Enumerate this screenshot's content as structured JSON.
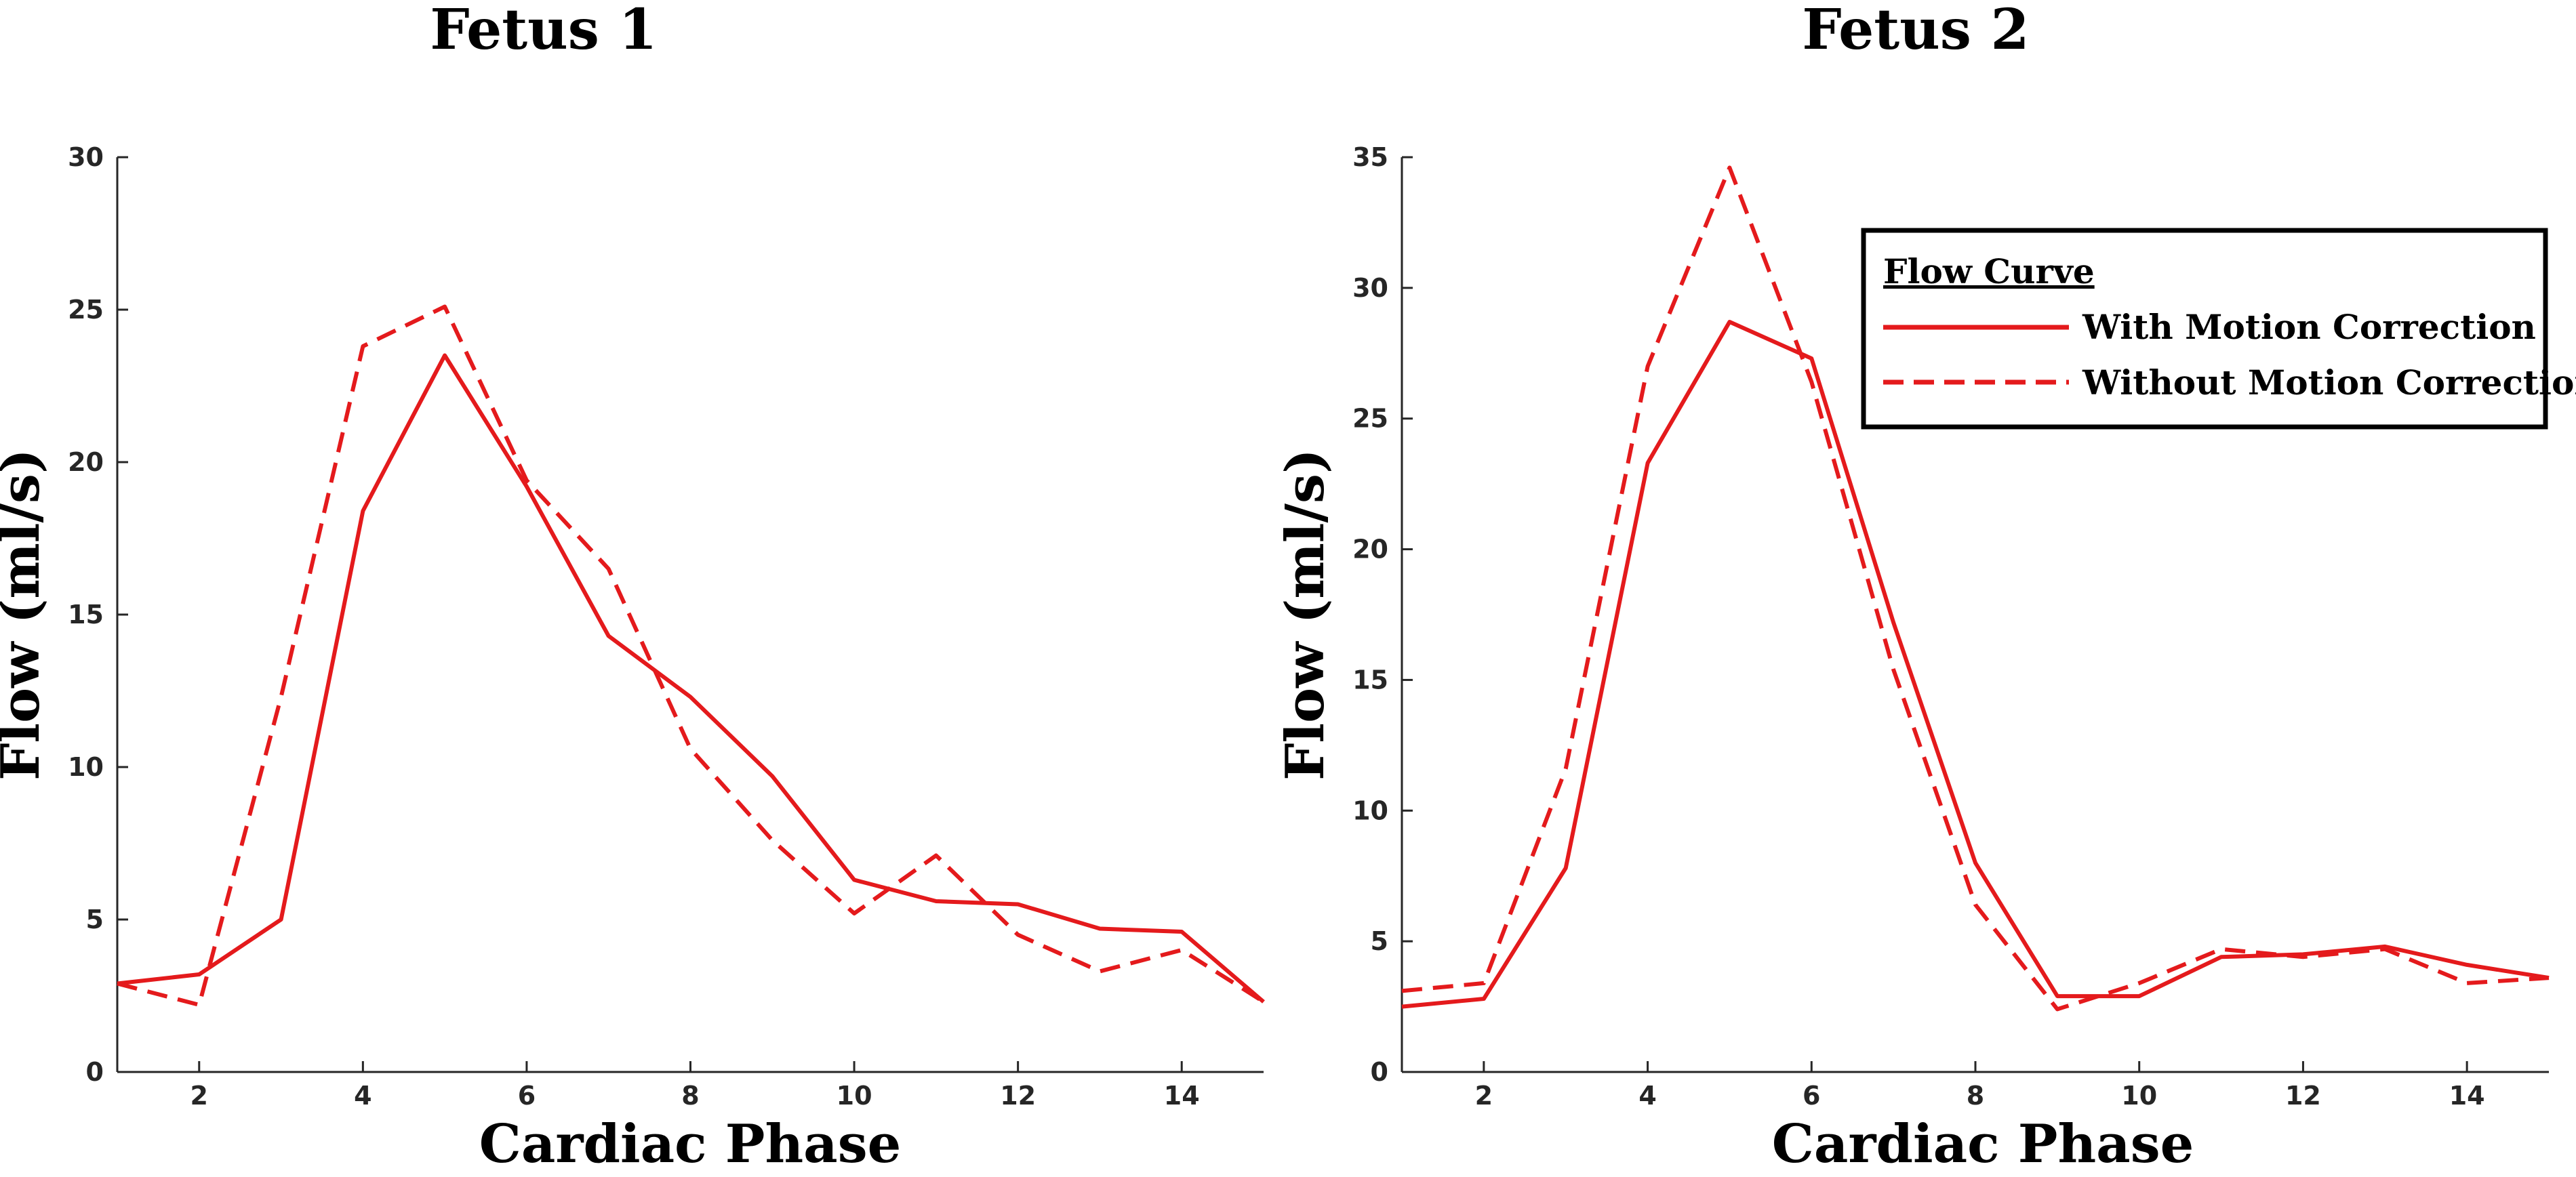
{
  "chart_data": [
    {
      "type": "line",
      "title": "Fetus 1",
      "xlabel": "Cardiac Phase",
      "ylabel": "Flow (ml/s)",
      "xlim": [
        1,
        15
      ],
      "ylim": [
        0,
        30
      ],
      "xticks": [
        2,
        4,
        6,
        8,
        10,
        12,
        14
      ],
      "yticks": [
        0,
        5,
        10,
        15,
        20,
        25,
        30
      ],
      "grid": false,
      "x": [
        1,
        2,
        3,
        4,
        5,
        6,
        7,
        8,
        9,
        10,
        11,
        12,
        13,
        14,
        15
      ],
      "series": [
        {
          "name": "With Motion Correction",
          "style": "solid",
          "color": "#e41a1c",
          "values": [
            2.9,
            3.2,
            5.0,
            18.4,
            23.5,
            19.2,
            14.3,
            12.3,
            9.7,
            6.3,
            5.6,
            5.5,
            4.7,
            4.6,
            2.3
          ]
        },
        {
          "name": "Without Motion Correction",
          "style": "dashed",
          "color": "#e41a1c",
          "values": [
            2.9,
            2.2,
            12.3,
            23.8,
            25.1,
            19.4,
            16.5,
            10.6,
            7.6,
            5.2,
            7.1,
            4.5,
            3.3,
            4.0,
            2.3
          ]
        }
      ]
    },
    {
      "type": "line",
      "title": "Fetus 2",
      "xlabel": "Cardiac Phase",
      "ylabel": "Flow (ml/s)",
      "xlim": [
        1,
        15
      ],
      "ylim": [
        0,
        35
      ],
      "xticks": [
        2,
        4,
        6,
        8,
        10,
        12,
        14
      ],
      "yticks": [
        0,
        5,
        10,
        15,
        20,
        25,
        30,
        35
      ],
      "grid": false,
      "legend": {
        "title": "Flow Curve",
        "placement": "top-right"
      },
      "x": [
        1,
        2,
        3,
        4,
        5,
        6,
        7,
        8,
        9,
        10,
        11,
        12,
        13,
        14,
        15
      ],
      "series": [
        {
          "name": "With Motion Correction",
          "style": "solid",
          "color": "#e41a1c",
          "values": [
            2.5,
            2.8,
            7.8,
            23.3,
            28.7,
            27.3,
            17.2,
            8.0,
            2.9,
            2.9,
            4.4,
            4.5,
            4.8,
            4.1,
            3.6
          ]
        },
        {
          "name": "Without Motion Correction",
          "style": "dashed",
          "color": "#e41a1c",
          "values": [
            3.1,
            3.4,
            11.6,
            27.0,
            34.6,
            26.4,
            15.4,
            6.4,
            2.4,
            3.4,
            4.7,
            4.4,
            4.7,
            3.4,
            3.6
          ]
        }
      ]
    }
  ]
}
